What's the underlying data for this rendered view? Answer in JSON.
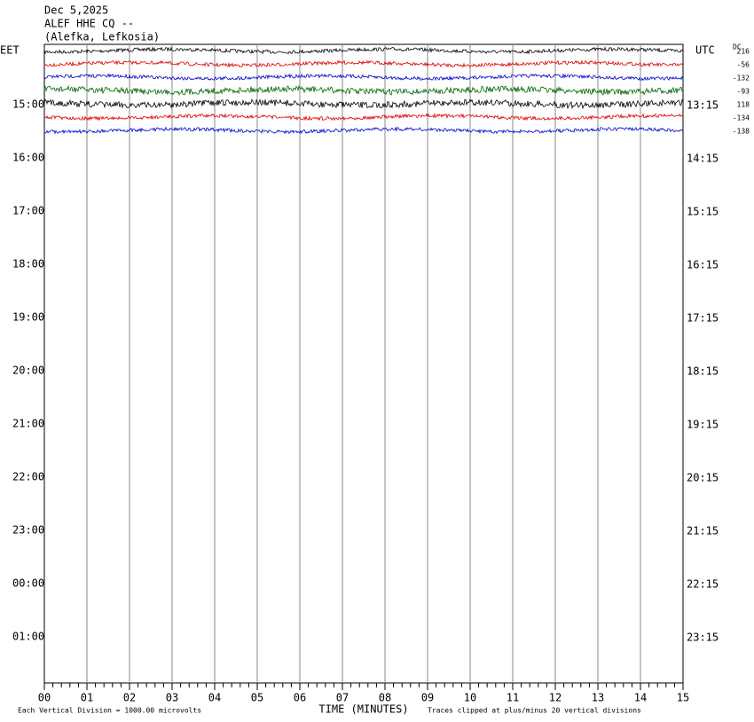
{
  "header": {
    "date": "Dec 5,2025",
    "station": "ALEF HHE CQ --",
    "location": "(Alefka, Lefkosia)"
  },
  "left_axis": {
    "title": "EET",
    "labels": [
      "15:00",
      "16:00",
      "17:00",
      "18:00",
      "19:00",
      "20:00",
      "21:00",
      "22:00",
      "23:00",
      "00:00",
      "01:00"
    ]
  },
  "right_axis": {
    "title": "UTC",
    "labels": [
      "13:15",
      "14:15",
      "15:15",
      "16:15",
      "17:15",
      "18:15",
      "19:15",
      "20:15",
      "21:15",
      "22:15",
      "23:15"
    ]
  },
  "dc_offsets": {
    "title": "DC",
    "values": [
      216,
      -56,
      -132,
      -93,
      118,
      -134,
      -138
    ]
  },
  "x_axis": {
    "title": "TIME (MINUTES)",
    "labels": [
      "00",
      "01",
      "02",
      "03",
      "04",
      "05",
      "06",
      "07",
      "08",
      "09",
      "10",
      "11",
      "12",
      "13",
      "14",
      "15"
    ]
  },
  "footer": {
    "scale_note": "Each Vertical Division = 1000.00 microvolts",
    "clip_note": "Traces clipped at plus/minus 20 vertical divisions"
  }
}
